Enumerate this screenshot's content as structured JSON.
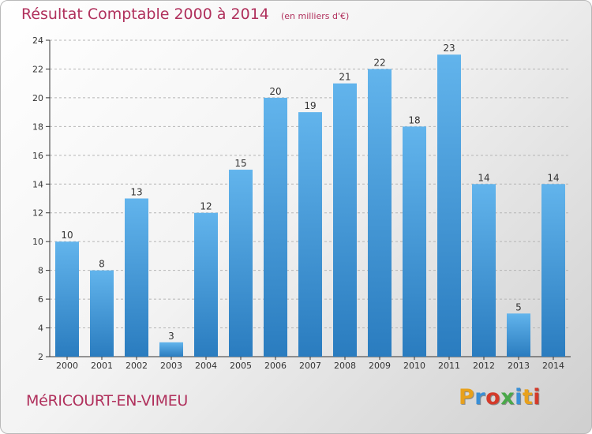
{
  "header": {
    "title": "Résultat Comptable 2000 à 2014",
    "subtitle": "(en milliers d'€)"
  },
  "footer": {
    "commune": "MéRICOURT-EN-VIMEU",
    "brand": "Proxiti",
    "brand_colors": [
      "#e8a11c",
      "#3a8fd6",
      "#d43a2a",
      "#4aa84a",
      "#3a8fd6",
      "#e8a11c",
      "#d43a2a"
    ]
  },
  "colors": {
    "bar_top": "#62b4ec",
    "bar_bottom": "#2a7cbf",
    "title": "#b0305c",
    "grid": "#b5b5b5"
  },
  "chart_data": {
    "type": "bar",
    "categories": [
      "2000",
      "2001",
      "2002",
      "2003",
      "2004",
      "2005",
      "2006",
      "2007",
      "2008",
      "2009",
      "2010",
      "2011",
      "2012",
      "2013",
      "2014"
    ],
    "values": [
      10,
      8,
      13,
      3,
      12,
      15,
      20,
      19,
      21,
      22,
      18,
      23,
      14,
      5,
      14
    ],
    "title": "Résultat Comptable 2000 à 2014",
    "ylim": [
      2,
      24
    ],
    "yticks": [
      2,
      4,
      6,
      8,
      10,
      12,
      14,
      16,
      18,
      20,
      22,
      24
    ],
    "grid": true,
    "data_labels": true
  }
}
